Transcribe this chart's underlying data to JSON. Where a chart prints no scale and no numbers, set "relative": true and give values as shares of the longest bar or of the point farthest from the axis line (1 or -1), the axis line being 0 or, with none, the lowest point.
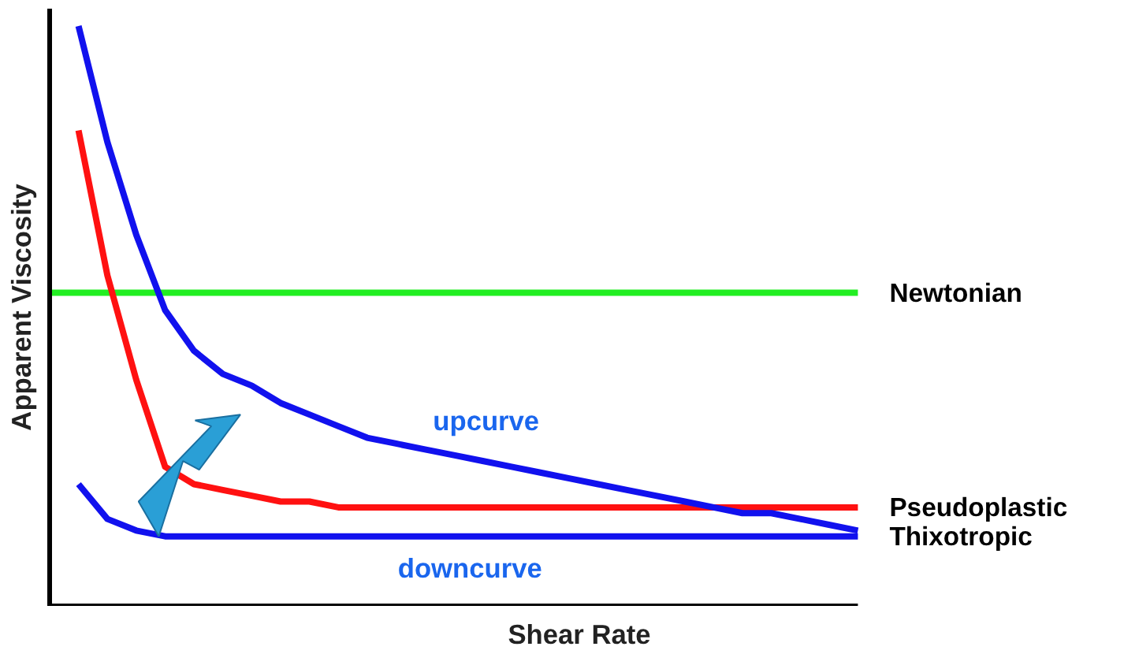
{
  "chart_data": {
    "type": "line",
    "relative": true,
    "xlabel": "Shear Rate",
    "ylabel": "Apparent Viscosity",
    "categories": [
      null,
      null,
      null,
      null,
      null,
      null,
      null,
      null,
      null,
      null,
      null,
      null,
      null,
      null,
      null,
      null,
      null,
      null,
      null,
      null,
      null,
      null,
      null,
      null,
      null,
      null,
      null,
      null,
      null
    ],
    "series": [
      {
        "name": "Newtonian",
        "color": "#22ee22",
        "values": [
          0.54,
          0.54,
          0.54,
          0.54,
          0.54,
          0.54,
          0.54,
          0.54,
          0.54,
          0.54,
          0.54,
          0.54,
          0.54,
          0.54,
          0.54,
          0.54,
          0.54,
          0.54,
          0.54,
          0.54,
          0.54,
          0.54,
          0.54,
          0.54,
          0.54,
          0.54,
          0.54,
          0.54,
          0.54
        ]
      },
      {
        "name": "Pseudoplastic",
        "color": "#ff1111",
        "values": [
          null,
          0.82,
          0.57,
          0.39,
          0.24,
          0.21,
          0.2,
          0.19,
          0.18,
          0.18,
          0.17,
          0.17,
          0.17,
          0.17,
          0.17,
          0.17,
          0.17,
          0.17,
          0.17,
          0.17,
          0.17,
          0.17,
          0.17,
          0.17,
          0.17,
          0.17,
          0.17,
          0.17,
          0.17
        ]
      },
      {
        "color": "#1111ee",
        "values": [
          null,
          1.0,
          0.8,
          0.64,
          0.51,
          0.44,
          0.4,
          0.38,
          0.35,
          0.33,
          0.31,
          0.29,
          0.28,
          0.27,
          0.26,
          0.25,
          0.24,
          0.23,
          0.22,
          0.21,
          0.2,
          0.19,
          0.18,
          0.17,
          0.16,
          0.16,
          0.15,
          0.14,
          0.13
        ]
      },
      {
        "name": "Thixotropic",
        "color": "#1111ee",
        "values": [
          null,
          0.21,
          0.15,
          0.13,
          0.12,
          0.12,
          0.12,
          0.12,
          0.12,
          0.12,
          0.12,
          0.12,
          0.12,
          0.12,
          0.12,
          0.12,
          0.12,
          0.12,
          0.12,
          0.12,
          0.12,
          0.12,
          0.12,
          0.12,
          0.12,
          0.12,
          0.12,
          0.12,
          0.12
        ]
      }
    ],
    "annotations": [
      "upcurve",
      "downcurve"
    ]
  }
}
